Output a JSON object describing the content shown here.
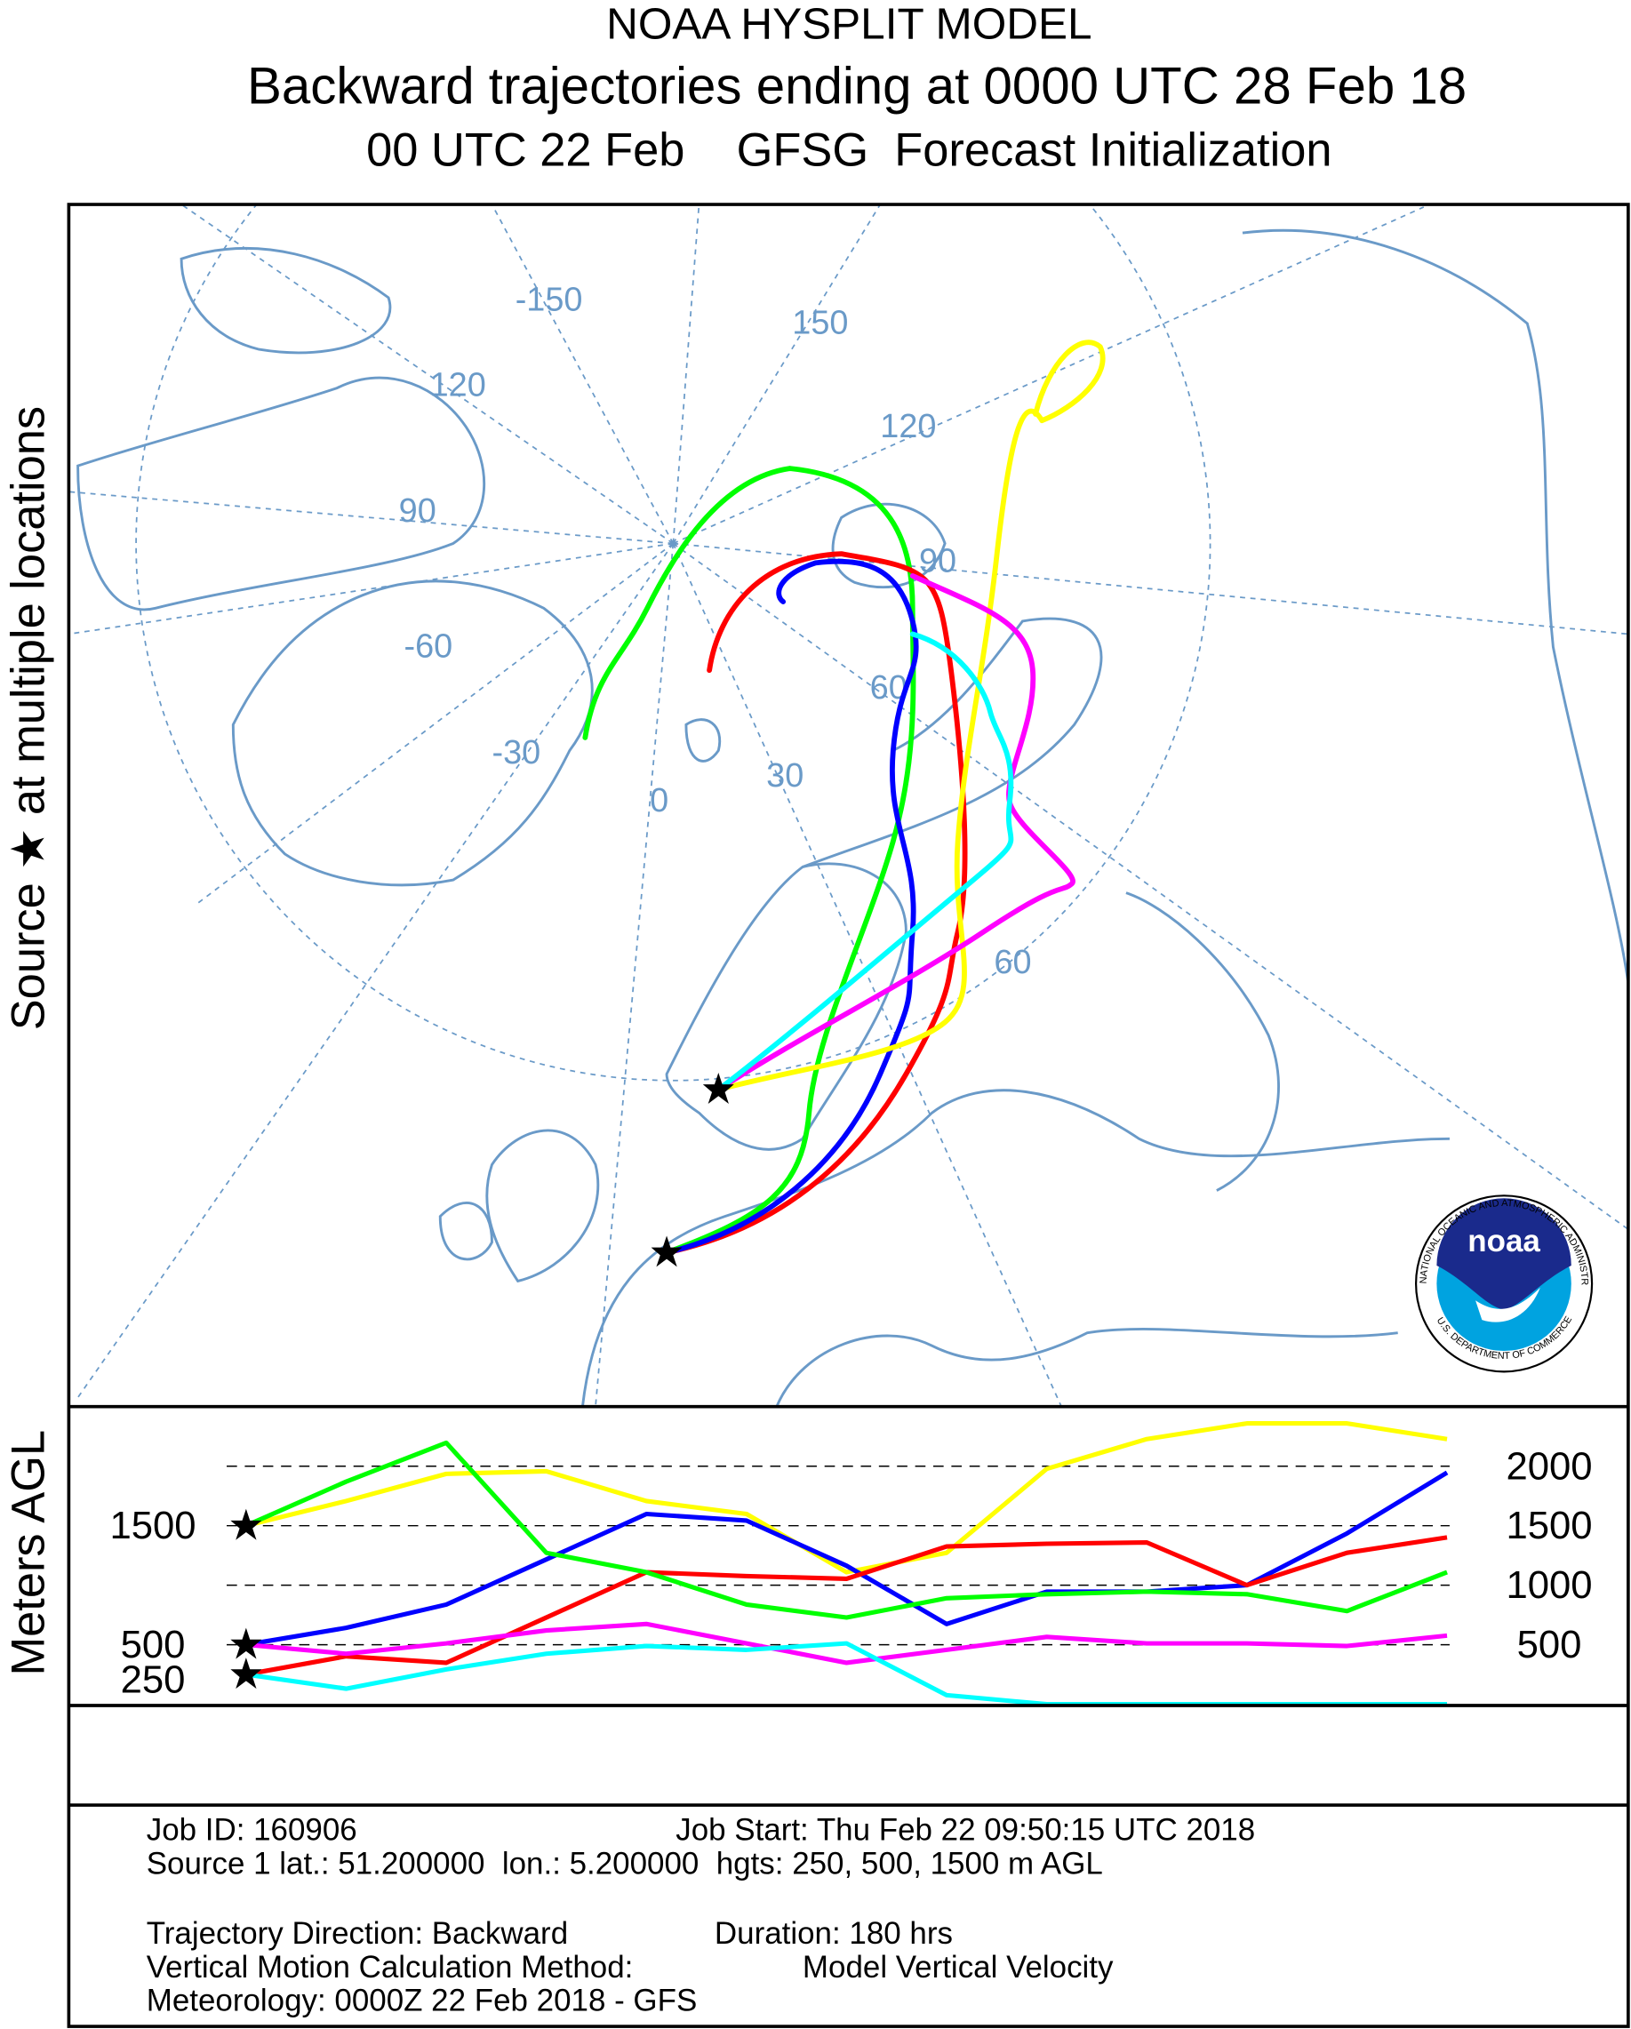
{
  "header": {
    "lines": [
      "NOAA HYSPLIT MODEL",
      "Backward trajectories ending at 0000 UTC 28 Feb 18",
      "00 UTC 22 Feb    GFSG  Forecast Initialization"
    ]
  },
  "side_label": "Source ★ at multiple locations",
  "map": {
    "labels": [
      "-150",
      "150",
      "120",
      "120",
      "90",
      "90",
      "-60",
      "60",
      "-30",
      "30",
      "0",
      "60"
    ]
  },
  "logo": {
    "name": "noaa",
    "ring_top": "NATIONAL OCEANIC AND ATMOSPHERIC ADMINISTRATION",
    "ring_bottom": "U.S. DEPARTMENT OF COMMERCE"
  },
  "chart_data": {
    "type": "line",
    "y_label": "Meters AGL",
    "ylim": [
      0,
      2490
    ],
    "yticks": [
      500,
      1000,
      1500,
      2000
    ],
    "source_heights": [
      250,
      500,
      1500
    ],
    "series": [
      {
        "color": "#ffff00",
        "values": [
          1500,
          1707,
          1935,
          1957,
          1707,
          1598,
          1109,
          1272,
          1978,
          2228,
          2359,
          2359,
          2228
        ]
      },
      {
        "color": "#0000ff",
        "values": [
          500,
          641,
          837,
          1217,
          1598,
          1543,
          1163,
          674,
          946,
          946,
          1000,
          1435,
          1946
        ]
      },
      {
        "color": "#ff0000",
        "values": [
          250,
          402,
          348,
          728,
          1109,
          1076,
          1054,
          1326,
          1348,
          1359,
          1000,
          1272,
          1402
        ]
      },
      {
        "color": "#00ff00",
        "values": [
          1500,
          1870,
          2196,
          1272,
          1109,
          837,
          728,
          891,
          924,
          946,
          924,
          783,
          1109
        ]
      },
      {
        "color": "#ff00ff",
        "values": [
          500,
          424,
          511,
          620,
          674,
          511,
          348,
          457,
          565,
          511,
          511,
          489,
          576
        ]
      },
      {
        "color": "#00ffff",
        "values": [
          250,
          130,
          293,
          424,
          489,
          457,
          511,
          76,
          0,
          0,
          0,
          0,
          0
        ]
      }
    ]
  },
  "footer": {
    "job_id": "Job ID: 160906",
    "job_start": "Job Start: Thu Feb 22 09:50:15 UTC 2018",
    "source": "Source 1 lat.: 51.200000  lon.: 5.200000  hgts: 250, 500, 1500 m AGL",
    "direction": "Trajectory Direction: Backward",
    "duration": "Duration: 180 hrs",
    "vertical_method": "Vertical Motion Calculation Method:",
    "vertical_value": "Model Vertical Velocity",
    "meteorology": "Meteorology: 0000Z 22 Feb 2018 - GFS"
  }
}
